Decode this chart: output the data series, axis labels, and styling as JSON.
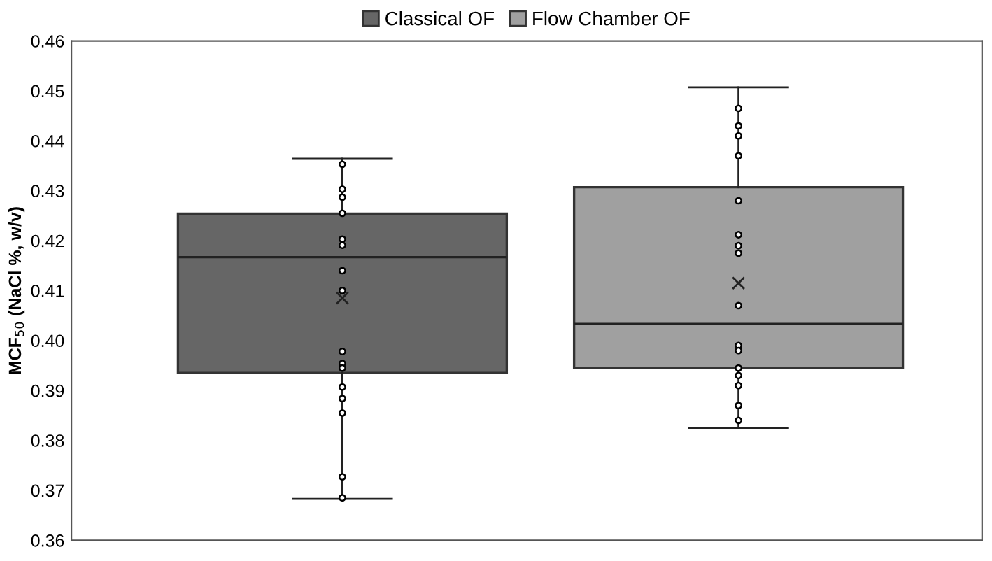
{
  "chart_data": {
    "type": "box",
    "categories": [
      null,
      null
    ],
    "ylabel": "MCF$_{50}$ (NaCl %, w/v)",
    "ylim": [
      0.36,
      0.46
    ],
    "yticks": [
      0.36,
      0.37,
      0.38,
      0.39,
      {
        "value": 0.4,
        "label": "0.40"
      },
      0.41,
      0.42,
      0.43,
      0.44,
      0.45,
      0.46
    ],
    "grid": false,
    "legend": "top",
    "marker": "circle",
    "series": [
      {
        "name": "Classical OF",
        "color": "#666666",
        "boxes": [
          {
            "low": 0.3683,
            "q1": 0.3935,
            "median": 0.4167,
            "q3": 0.4254,
            "high": 0.4364,
            "mean": 0.4085,
            "outliers": [
              0.4353,
              0.4303,
              0.4287,
              0.4255,
              0.4203,
              0.4191,
              0.414,
              0.41,
              0.3978,
              0.3954,
              0.3945,
              0.3907,
              0.3884,
              0.3855,
              0.3727,
              0.3685
            ]
          },
          null
        ]
      },
      {
        "name": "Flow Chamber OF",
        "color": "#a0a0a0",
        "boxes": [
          null,
          {
            "low": 0.3824,
            "q1": 0.3945,
            "median": 0.4033,
            "q3": 0.4307,
            "high": 0.4507,
            "mean": 0.4115,
            "outliers": [
              0.4465,
              0.443,
              0.441,
              0.437,
              0.428,
              0.4212,
              0.419,
              0.4175,
              0.407,
              0.399,
              0.398,
              0.3945,
              0.393,
              0.391,
              0.387,
              0.384
            ]
          }
        ]
      }
    ]
  }
}
